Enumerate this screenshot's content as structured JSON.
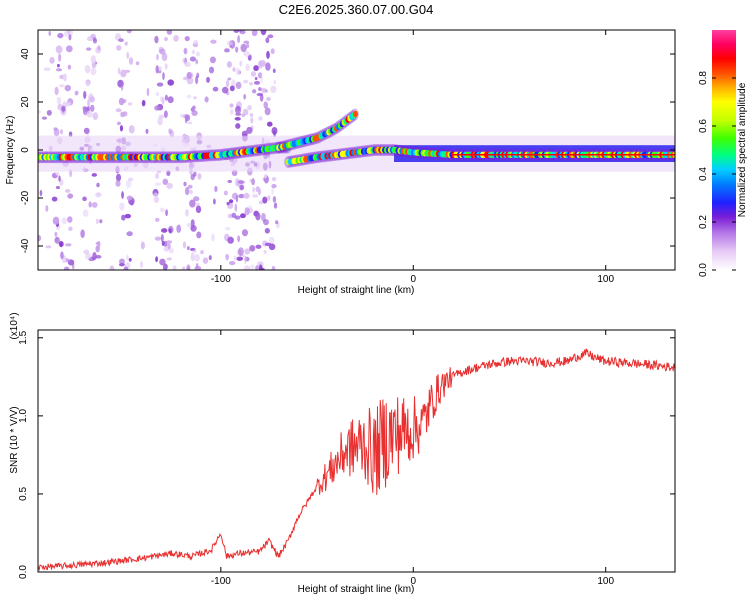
{
  "figure": {
    "title": "C2E6.2025.360.07.00.G04"
  },
  "colors": {
    "snr_line": "#e83030",
    "ridge": "#ff0000",
    "background": "#ffffff"
  },
  "colorbar": {
    "label": "Normalized spectral amplitude",
    "ticks": [
      "0.0",
      "0.2",
      "0.4",
      "0.6",
      "0.8"
    ],
    "tick_values": [
      0.0,
      0.2,
      0.4,
      0.6,
      0.8
    ],
    "range": [
      0,
      1
    ],
    "colormap": [
      "#ffffff",
      "#e6c8f5",
      "#b070e6",
      "#7a1fd6",
      "#2020ff",
      "#0080ff",
      "#00d0ff",
      "#00ff80",
      "#40ff00",
      "#c0ff00",
      "#ffff00",
      "#ffb000",
      "#ff5000",
      "#ff0000",
      "#ff0060",
      "#ff40a0"
    ]
  },
  "chart_data": [
    {
      "type": "heatmap",
      "name": "spectrogram",
      "title": "C2E6.2025.360.07.00.G04",
      "xlabel": "Height of straight line (km)",
      "ylabel": "Frequency (Hz)",
      "xlim": [
        -195,
        136
      ],
      "ylim": [
        -50,
        50
      ],
      "xticks": [
        -100,
        0,
        100
      ],
      "xtick_labels": [
        "-100",
        "0",
        "100"
      ],
      "yticks": [
        -40,
        -20,
        0,
        20,
        40
      ],
      "ytick_labels": [
        "-40",
        "-20",
        "0",
        "20",
        "40"
      ],
      "ridge_segments": [
        {
          "name": "main-ridge",
          "x": [
            -195,
            -150,
            -120,
            -100,
            -80,
            -70,
            -65
          ],
          "y": [
            -3,
            -3,
            -3,
            -2,
            0,
            1,
            1
          ]
        },
        {
          "name": "rising-branch",
          "x": [
            -70,
            -60,
            -50,
            -40,
            -35,
            -30
          ],
          "y": [
            1,
            3,
            5,
            9,
            12,
            15
          ]
        },
        {
          "name": "lower-branch",
          "x": [
            -65,
            -50,
            -40,
            -30,
            -20,
            -10
          ],
          "y": [
            -5,
            -3,
            -2,
            -1,
            0,
            0
          ]
        },
        {
          "name": "right-ridge",
          "x": [
            -10,
            0,
            20,
            50,
            80,
            100,
            136
          ],
          "y": [
            0,
            -1,
            -2,
            -2,
            -2,
            -2,
            -2
          ]
        }
      ],
      "noise_region_x": [
        -195,
        -70
      ]
    },
    {
      "type": "line",
      "name": "snr",
      "xlabel": "Height of straight line (km)",
      "ylabel": "SNR (10 * V/V)",
      "y_multiplier": "(x10⁴)",
      "xlim": [
        -195,
        136
      ],
      "ylim": [
        0,
        1.55
      ],
      "xticks": [
        -100,
        0,
        100
      ],
      "xtick_labels": [
        "-100",
        "0",
        "100"
      ],
      "yticks": [
        0.0,
        0.5,
        1.0,
        1.5
      ],
      "ytick_labels": [
        "0.0",
        "0.5",
        "1.0",
        "1.5"
      ],
      "series": [
        {
          "name": "SNR",
          "x": [
            -195,
            -180,
            -160,
            -140,
            -125,
            -115,
            -105,
            -100,
            -97,
            -90,
            -80,
            -75,
            -70,
            -65,
            -60,
            -55,
            -50,
            -45,
            -40,
            -35,
            -30,
            -25,
            -20,
            -15,
            -10,
            -5,
            0,
            5,
            10,
            15,
            20,
            25,
            30,
            40,
            50,
            60,
            70,
            80,
            85,
            90,
            95,
            100,
            110,
            120,
            136
          ],
          "y": [
            0.03,
            0.04,
            0.06,
            0.09,
            0.12,
            0.1,
            0.14,
            0.25,
            0.1,
            0.12,
            0.13,
            0.2,
            0.1,
            0.2,
            0.35,
            0.45,
            0.55,
            0.62,
            0.7,
            0.78,
            0.8,
            0.82,
            0.75,
            0.85,
            0.88,
            0.9,
            0.92,
            0.95,
            1.1,
            1.2,
            1.25,
            1.28,
            1.3,
            1.33,
            1.35,
            1.35,
            1.34,
            1.35,
            1.38,
            1.4,
            1.37,
            1.35,
            1.34,
            1.33,
            1.31
          ]
        }
      ],
      "spike_region_x": [
        -50,
        20
      ]
    }
  ]
}
